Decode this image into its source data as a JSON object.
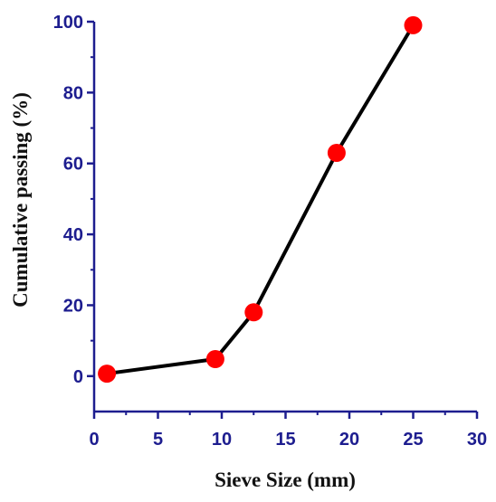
{
  "chart_data": {
    "type": "line",
    "title": "",
    "xlabel": "Sieve Size (mm)",
    "ylabel": "Cumulative passing (%)",
    "xlim": [
      0,
      30
    ],
    "ylim": [
      -10,
      100
    ],
    "xticks": [
      0,
      5,
      10,
      15,
      20,
      25,
      30
    ],
    "yticks": [
      0,
      20,
      40,
      60,
      80,
      100
    ],
    "grid": false,
    "legend": "none",
    "series": [
      {
        "x": [
          1.0,
          9.5,
          12.5,
          19.0,
          25.0
        ],
        "y": [
          0.7,
          4.8,
          18.0,
          63.0,
          99.0
        ],
        "line_color": "#000000",
        "marker_color": "#ff0000"
      }
    ],
    "axis_color": "#1d1d8f",
    "tick_label_color": "#1d1d8f",
    "axis_title_color": "#111111"
  }
}
